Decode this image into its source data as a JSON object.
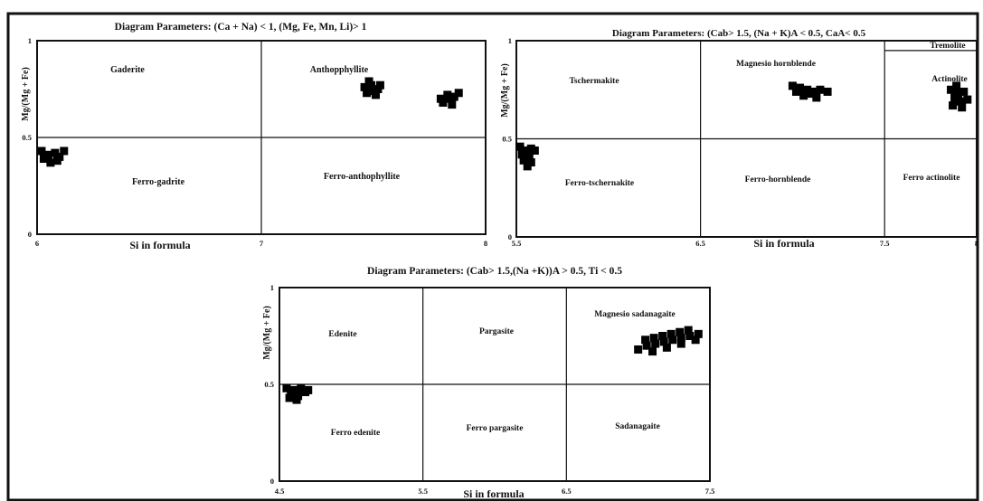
{
  "colors": {
    "ink": "#111111",
    "marker": "#000000",
    "background": "#ffffff"
  },
  "chart_data": [
    {
      "type": "scatter",
      "title": "Diagram Parameters: (Ca + Na) < 1, (Mg, Fe, Mn, Li)> 1",
      "xlabel": "Si in formula",
      "ylabel": "Mg/(Mg + Fe)",
      "xlim": [
        6,
        8
      ],
      "ylim": [
        0,
        1
      ],
      "x_ticks": [
        "6",
        "7",
        "8"
      ],
      "y_ticks": [
        "0",
        "0.5",
        "1"
      ],
      "grid": "field boundaries",
      "fields": [
        {
          "label": "Gaderite"
        },
        {
          "label": "Anthopphyllite"
        },
        {
          "label": "Ferro-gadrite"
        },
        {
          "label": "Ferro-anthophyllite"
        }
      ],
      "points": [
        [
          6.02,
          0.43
        ],
        [
          6.05,
          0.41
        ],
        [
          6.08,
          0.42
        ],
        [
          6.03,
          0.39
        ],
        [
          6.1,
          0.4
        ],
        [
          6.06,
          0.37
        ],
        [
          6.12,
          0.43
        ],
        [
          6.09,
          0.38
        ],
        [
          7.46,
          0.76
        ],
        [
          7.49,
          0.77
        ],
        [
          7.52,
          0.75
        ],
        [
          7.47,
          0.73
        ],
        [
          7.5,
          0.74
        ],
        [
          7.53,
          0.77
        ],
        [
          7.48,
          0.79
        ],
        [
          7.51,
          0.72
        ],
        [
          7.8,
          0.7
        ],
        [
          7.83,
          0.72
        ],
        [
          7.86,
          0.71
        ],
        [
          7.81,
          0.68
        ],
        [
          7.85,
          0.67
        ],
        [
          7.88,
          0.73
        ],
        [
          7.84,
          0.7
        ]
      ]
    },
    {
      "type": "scatter",
      "title": "Diagram Parameters: (Cab> 1.5, (Na + K)A < 0.5, CaA< 0.5",
      "xlabel": "Si in formula",
      "ylabel": "Mg/(Mg + Fe)",
      "xlim": [
        5.5,
        8
      ],
      "ylim": [
        0,
        1
      ],
      "x_ticks": [
        "5.5",
        "6.5",
        "7.5",
        "8"
      ],
      "y_ticks": [
        "0",
        "0.5",
        "1"
      ],
      "grid": "field boundaries",
      "fields": [
        {
          "label": "Tremolite"
        },
        {
          "label": "Tschermakite"
        },
        {
          "label": "Magnesio hornblende"
        },
        {
          "label": "Actinolite"
        },
        {
          "label": "Ferro-tschernakite"
        },
        {
          "label": "Ferro-hornblende"
        },
        {
          "label": "Ferro actinolite"
        }
      ],
      "points": [
        [
          5.52,
          0.46
        ],
        [
          5.55,
          0.44
        ],
        [
          5.58,
          0.45
        ],
        [
          5.53,
          0.42
        ],
        [
          5.57,
          0.41
        ],
        [
          5.6,
          0.44
        ],
        [
          5.54,
          0.39
        ],
        [
          5.58,
          0.38
        ],
        [
          5.56,
          0.36
        ],
        [
          7.0,
          0.77
        ],
        [
          7.04,
          0.76
        ],
        [
          7.08,
          0.75
        ],
        [
          7.12,
          0.74
        ],
        [
          7.06,
          0.72
        ],
        [
          7.1,
          0.73
        ],
        [
          7.15,
          0.75
        ],
        [
          7.19,
          0.74
        ],
        [
          7.02,
          0.74
        ],
        [
          7.13,
          0.71
        ],
        [
          7.86,
          0.75
        ],
        [
          7.9,
          0.73
        ],
        [
          7.93,
          0.74
        ],
        [
          7.88,
          0.71
        ],
        [
          7.91,
          0.69
        ],
        [
          7.95,
          0.7
        ],
        [
          7.87,
          0.67
        ],
        [
          7.92,
          0.66
        ],
        [
          7.89,
          0.77
        ]
      ]
    },
    {
      "type": "scatter",
      "title": "Diagram Parameters: (Cab> 1.5,(Na +K))A > 0.5, Ti < 0.5",
      "xlabel": "Si in formula",
      "ylabel": "Mg/(Mg + Fe)",
      "xlim": [
        4.5,
        7.5
      ],
      "ylim": [
        0,
        1
      ],
      "x_ticks": [
        "4.5",
        "5.5",
        "6.5",
        "7.5"
      ],
      "y_ticks": [
        "0",
        "0.5",
        "1"
      ],
      "grid": "field boundaries",
      "fields": [
        {
          "label": "Edenite"
        },
        {
          "label": "Pargasite"
        },
        {
          "label": "Magnesio sadanagaite"
        },
        {
          "label": "Ferro edenite"
        },
        {
          "label": "Ferro pargasite"
        },
        {
          "label": "Sadanagaite"
        }
      ],
      "points": [
        [
          4.55,
          0.48
        ],
        [
          4.6,
          0.47
        ],
        [
          4.65,
          0.48
        ],
        [
          4.7,
          0.47
        ],
        [
          4.58,
          0.45
        ],
        [
          4.63,
          0.44
        ],
        [
          4.68,
          0.46
        ],
        [
          4.62,
          0.42
        ],
        [
          4.57,
          0.43
        ],
        [
          7.0,
          0.68
        ],
        [
          7.06,
          0.7
        ],
        [
          7.12,
          0.71
        ],
        [
          7.18,
          0.72
        ],
        [
          7.24,
          0.73
        ],
        [
          7.3,
          0.74
        ],
        [
          7.36,
          0.75
        ],
        [
          7.42,
          0.76
        ],
        [
          7.05,
          0.73
        ],
        [
          7.11,
          0.74
        ],
        [
          7.17,
          0.75
        ],
        [
          7.23,
          0.76
        ],
        [
          7.29,
          0.77
        ],
        [
          7.35,
          0.78
        ],
        [
          7.1,
          0.67
        ],
        [
          7.2,
          0.69
        ],
        [
          7.3,
          0.71
        ],
        [
          7.4,
          0.73
        ]
      ]
    }
  ]
}
